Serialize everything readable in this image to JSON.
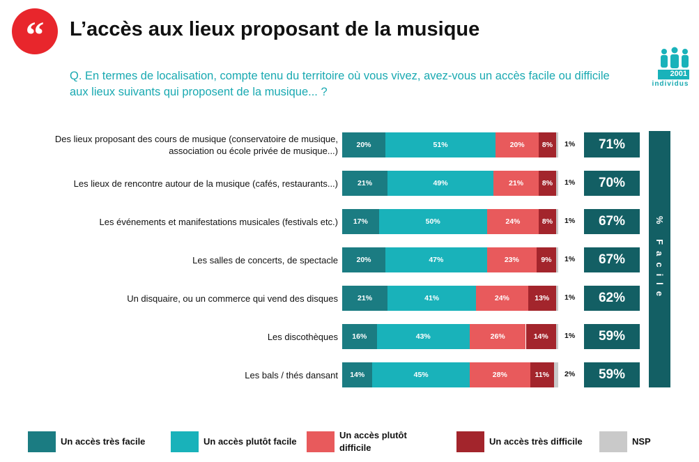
{
  "chart_data": {
    "type": "stacked-bar",
    "title": "L’accès aux lieux proposant de la musique",
    "subtitle": "Q. En termes de localisation, compte tenu du territoire où vous vivez, avez-vous un accès facile ou difficile aux lieux suivants qui proposent de la musique... ?",
    "sample": {
      "n": 2001,
      "unit": "individus"
    },
    "categories": [
      "Des lieux proposant des cours de musique (conservatoire de musique, association ou école privée de musique...)",
      "Les lieux de rencontre autour de la musique (cafés, restaurants...)",
      "Les événements et manifestations musicales (festivals etc.)",
      "Les salles de concerts, de spectacle",
      "Un disquaire, ou un commerce qui vend des disques",
      "Les discothèques",
      "Les bals / thés dansant"
    ],
    "series": [
      {
        "name": "Un accès très facile",
        "color": "#1b7c82",
        "values": [
          20,
          21,
          17,
          20,
          21,
          16,
          14
        ],
        "value_labels": [
          "20%",
          "21%",
          "17%",
          "20%",
          "21%",
          "16%",
          "14%"
        ]
      },
      {
        "name": "Un accès plutôt facile",
        "color": "#19b2ba",
        "values": [
          51,
          49,
          50,
          47,
          41,
          43,
          45
        ],
        "value_labels": [
          "51%",
          "49%",
          "50%",
          "47%",
          "41%",
          "43%",
          "45%"
        ]
      },
      {
        "name": "Un accès plutôt difficile",
        "color": "#e85a5c",
        "values": [
          20,
          21,
          24,
          23,
          24,
          26,
          28
        ],
        "value_labels": [
          "20%",
          "21%",
          "24%",
          "23%",
          "24%",
          "26%",
          "28%"
        ]
      },
      {
        "name": "Un accès très difficile",
        "color": "#a3252c",
        "values": [
          8,
          8,
          8,
          9,
          13,
          14,
          11
        ],
        "value_labels": [
          "8%",
          "8%",
          "8%",
          "9%",
          "13%",
          "14%",
          "11%"
        ]
      },
      {
        "name": "NSP",
        "color": "#c9c9c9",
        "values": [
          1,
          1,
          1,
          1,
          1,
          1,
          2
        ],
        "value_labels": [
          "1%",
          "1%",
          "1%",
          "1%",
          "1%",
          "1%",
          "2%"
        ]
      }
    ],
    "summary": {
      "label": "% Facile",
      "color": "#135f64",
      "values": [
        71,
        70,
        67,
        67,
        62,
        59,
        59
      ],
      "value_labels": [
        "71%",
        "70%",
        "67%",
        "67%",
        "62%",
        "59%",
        "59%"
      ]
    }
  }
}
